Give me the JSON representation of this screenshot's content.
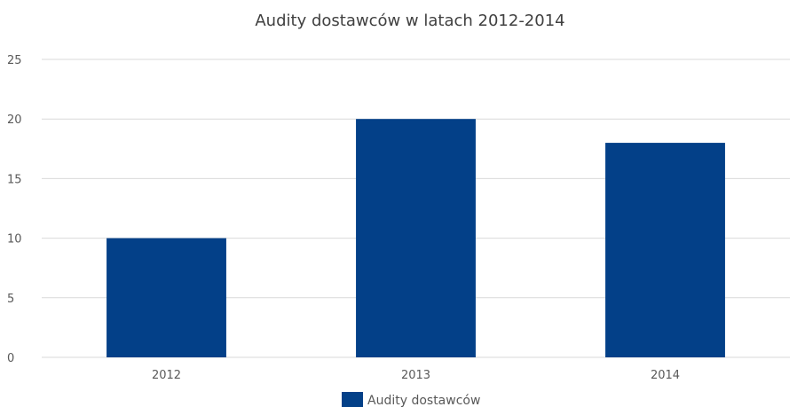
{
  "chart_data": {
    "type": "bar",
    "title": "Audity dostawców w latach 2012-2014",
    "categories": [
      "2012",
      "2013",
      "2014"
    ],
    "series": [
      {
        "name": "Audity dostawców",
        "values": [
          10,
          20,
          18
        ],
        "color": "#034088"
      }
    ],
    "xlabel": "",
    "ylabel": "",
    "ylim": [
      0,
      25
    ],
    "yticks": [
      "0",
      "5",
      "10",
      "15",
      "20",
      "25"
    ],
    "grid": true,
    "legend_position": "bottom",
    "gridline_color": "#d9d9d9"
  }
}
